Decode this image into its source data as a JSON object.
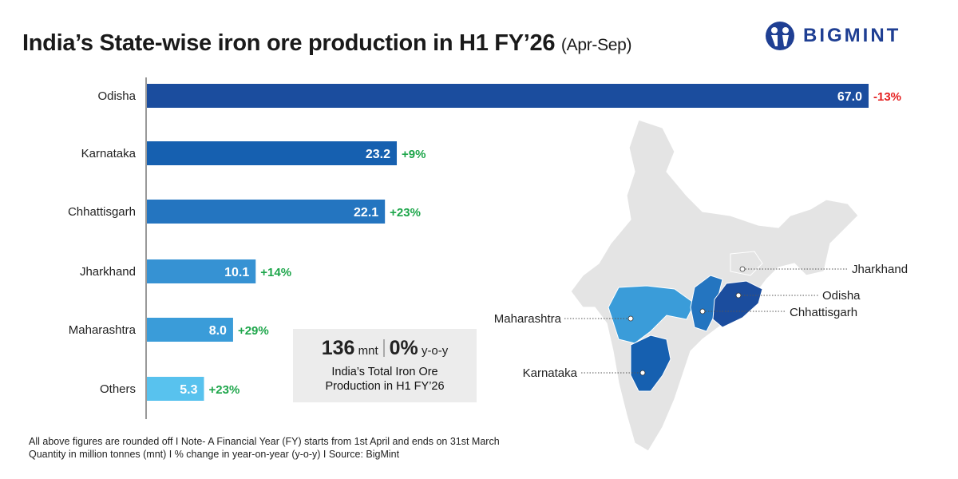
{
  "title": "India’s State-wise iron ore production in H1 FY’26",
  "subtitle": "(Apr-Sep)",
  "logo": {
    "text": "BIGMINT",
    "color": "#1f3f93"
  },
  "summary": {
    "total": "136",
    "total_unit": "mnt",
    "change": "0%",
    "change_unit": "y-o-y",
    "description_line1": "India’s Total Iron Ore",
    "description_line2": "Production in H1 FY’26"
  },
  "footer": {
    "line1": "All above figures are rounded off  I  Note- A Financial Year (FY) starts from 1st April and ends on 31st March",
    "line2": "Quantity in million tonnes (mnt)  I  % change in year-on-year (y-o-y)  I  Source: BigMint"
  },
  "map": {
    "labels": [
      "Jharkhand",
      "Odisha",
      "Chhattisgarh",
      "Maharashtra",
      "Karnataka"
    ]
  },
  "colors": {
    "positive": "#1ea64b",
    "negative": "#e52020"
  },
  "chart_data": {
    "type": "bar",
    "orientation": "horizontal",
    "categories": [
      "Odisha",
      "Karnataka",
      "Chhattisgarh",
      "Jharkhand",
      "Maharashtra",
      "Others"
    ],
    "values": [
      67.0,
      23.2,
      22.1,
      10.1,
      8.0,
      5.3
    ],
    "value_labels": [
      "67.0",
      "23.2",
      "22.1",
      "10.1",
      "8.0",
      "5.3"
    ],
    "yoy_change": [
      "-13%",
      "+9%",
      "+23%",
      "+14%",
      "+29%",
      "+23%"
    ],
    "bar_colors": [
      "#1b4d9e",
      "#1660b0",
      "#2475c0",
      "#3692d3",
      "#3a9cd9",
      "#58c2ee"
    ],
    "unit": "mnt",
    "xlim": [
      0,
      67
    ],
    "grid": false
  }
}
